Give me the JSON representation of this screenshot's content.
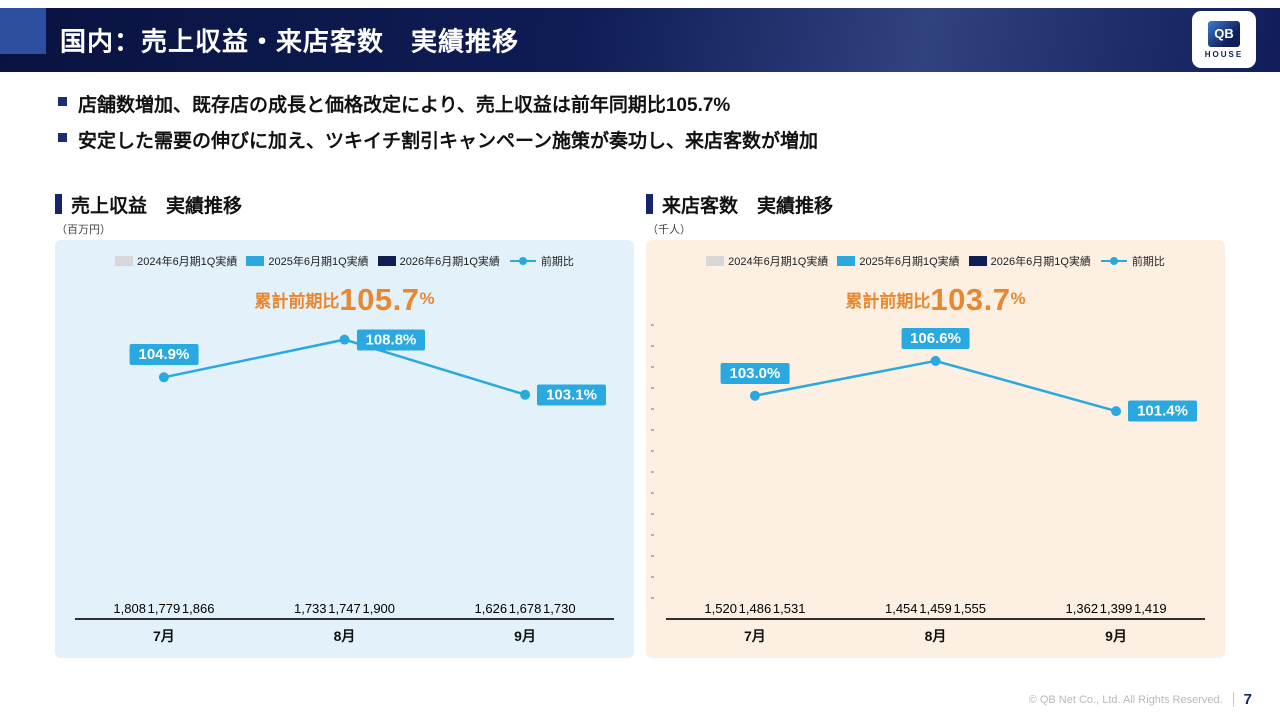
{
  "header": {
    "title": "国内：売上収益・来店客数　実績推移",
    "logo": {
      "line1": "QB",
      "line2": "HOUSE"
    }
  },
  "bullets": [
    "店舗数増加、既存店の成長と価格改定により、売上収益は前年同期比105.7%",
    "安定した需要の伸びに加え、ツキイチ割引キャンペーン施策が奏功し、来店客数が増加"
  ],
  "footer": {
    "copyright": "© QB Net Co., Ltd. All Rights Reserved.",
    "page": "7"
  },
  "chart_data": [
    {
      "type": "bar+line",
      "title": "売上収益　実績推移",
      "unit_label": "（百万円）",
      "categories": [
        "7月",
        "8月",
        "9月"
      ],
      "series": [
        {
          "name": "2024年6月期1Q実績",
          "color": "#d7d7d7",
          "values": [
            1808,
            1733,
            1626
          ]
        },
        {
          "name": "2025年6月期1Q実績",
          "color": "#29a9e0",
          "values": [
            1779,
            1747,
            1678
          ]
        },
        {
          "name": "2026年6月期1Q実績",
          "color": "#101c54",
          "values": [
            1866,
            1900,
            1730
          ]
        }
      ],
      "line": {
        "name": "前期比",
        "color": "#29a9e0",
        "values": [
          104.9,
          108.8,
          103.1
        ],
        "labels": [
          "104.9%",
          "108.8%",
          "103.1%"
        ],
        "label_placement": [
          "above",
          "right",
          "right"
        ],
        "ylim": [
          80,
          110
        ]
      },
      "cumulative": {
        "label": "累計前期比",
        "value": "105.7",
        "suffix": "%"
      },
      "bar_ylim": [
        1500,
        2000
      ],
      "panel_bg": "#e3f1fb",
      "legend_position": "top",
      "grid": false
    },
    {
      "type": "bar+line",
      "title": "来店客数　実績推移",
      "unit_label": "（千人）",
      "categories": [
        "7月",
        "8月",
        "9月"
      ],
      "series": [
        {
          "name": "2024年6月期1Q実績",
          "color": "#d7d7d7",
          "values": [
            1520,
            1454,
            1362
          ]
        },
        {
          "name": "2025年6月期1Q実績",
          "color": "#29a9e0",
          "values": [
            1486,
            1459,
            1399
          ]
        },
        {
          "name": "2026年6月期1Q実績",
          "color": "#101c54",
          "values": [
            1531,
            1555,
            1419
          ]
        }
      ],
      "line": {
        "name": "前期比",
        "color": "#29a9e0",
        "values": [
          103.0,
          106.6,
          101.4
        ],
        "labels": [
          "103.0%",
          "106.6%",
          "101.4%"
        ],
        "label_placement": [
          "above",
          "above",
          "right"
        ],
        "ylim": [
          80,
          110
        ]
      },
      "cumulative": {
        "label": "累計前期比",
        "value": "103.7",
        "suffix": "%"
      },
      "bar_ylim": [
        1300,
        1610
      ],
      "panel_bg": "#fdf0e3",
      "left_ticks": true,
      "legend_position": "top",
      "grid": false
    }
  ]
}
